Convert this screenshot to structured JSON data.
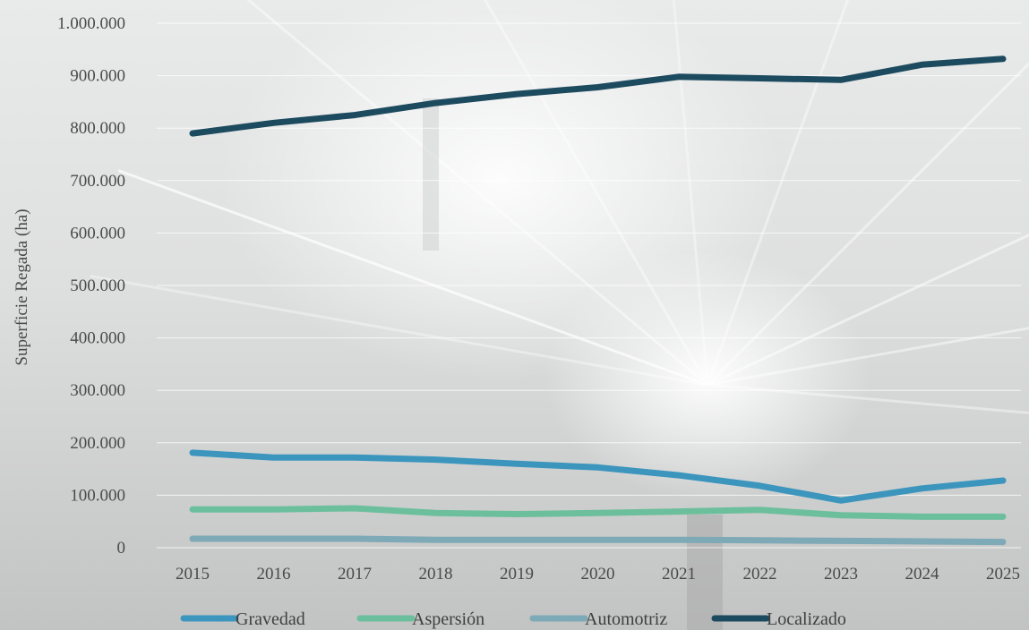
{
  "chart_data": {
    "type": "line",
    "title": "",
    "xlabel": "",
    "ylabel": "Superficie Regada (ha)",
    "x": [
      "2015",
      "2016",
      "2017",
      "2018",
      "2019",
      "2020",
      "2021",
      "2022",
      "2023",
      "2024",
      "2025"
    ],
    "ylim": [
      0,
      1000000
    ],
    "yticks": [
      0,
      100000,
      200000,
      300000,
      400000,
      500000,
      600000,
      700000,
      800000,
      900000,
      1000000
    ],
    "ytick_labels": [
      "0",
      "100.000",
      "200.000",
      "300.000",
      "400.000",
      "500.000",
      "600.000",
      "700.000",
      "800.000",
      "900.000",
      "1.000.000"
    ],
    "grid": true,
    "legend_position": "bottom",
    "series": [
      {
        "name": "Gravedad",
        "color": "#3b95bd",
        "values": [
          181000,
          172000,
          172000,
          168000,
          160000,
          153000,
          138000,
          118000,
          90000,
          113000,
          128000
        ]
      },
      {
        "name": "Aspersión",
        "color": "#6cbf9c",
        "values": [
          73000,
          73000,
          75000,
          66000,
          64000,
          66000,
          69000,
          72000,
          62000,
          59000,
          59000
        ]
      },
      {
        "name": "Automotriz",
        "color": "#7ea9b6",
        "values": [
          17000,
          17000,
          17000,
          15000,
          15000,
          15000,
          15000,
          14000,
          13000,
          12000,
          11000
        ]
      },
      {
        "name": "Localizado",
        "color": "#1c4a5e",
        "values": [
          790000,
          810000,
          825000,
          848000,
          865000,
          878000,
          898000,
          895000,
          892000,
          921000,
          932000
        ]
      }
    ]
  }
}
